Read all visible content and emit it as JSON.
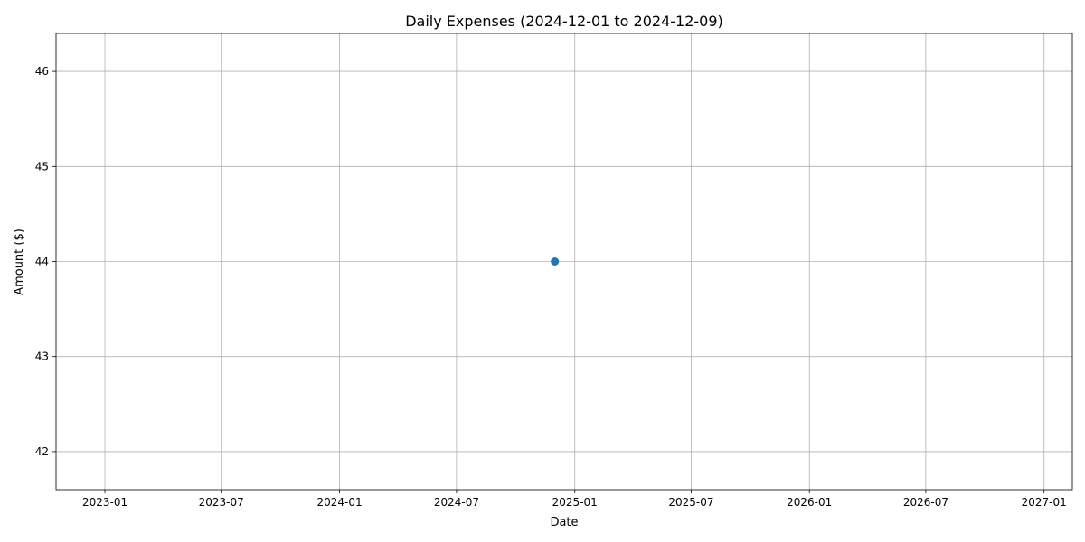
{
  "chart_data": {
    "type": "line",
    "title": "Daily Expenses (2024-12-01 to 2024-12-09)",
    "xlabel": "Date",
    "ylabel": "Amount ($)",
    "x_axis_type": "date",
    "xlim": [
      "2022-10-17",
      "2027-02-14"
    ],
    "ylim": [
      41.6,
      46.4
    ],
    "x_ticks": [
      "2023-01-01",
      "2023-07-01",
      "2024-01-01",
      "2024-07-01",
      "2025-01-01",
      "2025-07-01",
      "2026-01-01",
      "2026-07-01",
      "2027-01-01"
    ],
    "x_tick_labels": [
      "2023-01",
      "2023-07",
      "2024-01",
      "2024-07",
      "2025-01",
      "2025-07",
      "2026-01",
      "2026-07",
      "2027-01"
    ],
    "y_ticks": [
      42,
      43,
      44,
      45,
      46
    ],
    "y_tick_labels": [
      "42",
      "43",
      "44",
      "45",
      "46"
    ],
    "grid": true,
    "series": [
      {
        "color": "#1f77b4",
        "marker": "circle",
        "points": [
          {
            "x": "2024-12-01",
            "y": 44
          }
        ]
      }
    ]
  }
}
